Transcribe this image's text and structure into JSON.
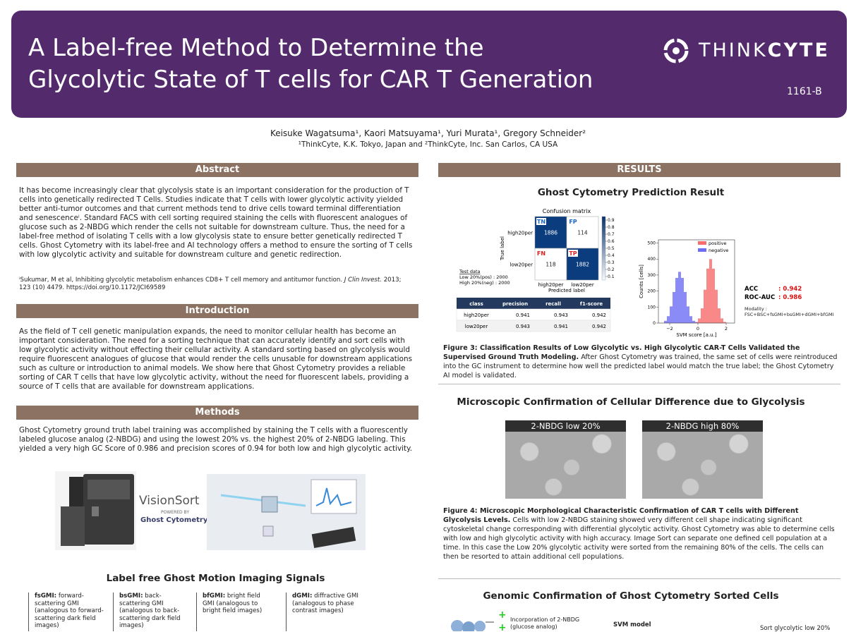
{
  "header": {
    "title_line1": "A Label-free Method to Determine the",
    "title_line2": "Glycolytic State of T cells for CAR T Generation",
    "logo_think": "THINK",
    "logo_cyte": "CYTE",
    "code": "1161-B"
  },
  "authors": {
    "names": "Keisuke Wagatsuma¹, Kaori Matsuyama¹, Yuri Murata¹, Gregory Schneider²",
    "affiliations": "¹ThinkCyte, K.K. Tokyo, Japan and ²ThinkCyte, Inc. San Carlos, CA USA"
  },
  "abstract": {
    "heading": "Abstract",
    "text": "It has become increasingly clear that glycolysis state is an important consideration for the production of T cells into genetically redirected T Cells. Studies indicate that T cells with lower glycolytic activity yielded better anti-tumor outcomes and that current methods tend to drive cells toward terminal differentiation and senescenceⁱ. Standard FACS with cell sorting required staining the cells with fluorescent analogues of glucose such as 2-NBDG which render the cells not suitable for downstream culture. Thus, the need for a label-free method of isolating T cells with a low glycolysis state to ensure better genetically redirected T cells. Ghost Cytometry with its label-free and AI technology offers a method to ensure the sorting of T cells with low glycolytic activity and suitable for downstream culture and genetic redirection.",
    "reference_1": "ⁱSukumar, M et al, Inhibiting glycolytic metabolism enhances CD8+ T cell memory and antitumor function.",
    "reference_journal": "J Clin Invest.",
    "reference_2": "2013; 123 (10) 4479. https://doi.org/10.1172/JCI69589"
  },
  "introduction": {
    "heading": "Introduction",
    "text": "As the field of T cell genetic manipulation expands, the need to monitor cellular health has become an important consideration. The need for a sorting technique that can accurately identify and sort cells with low glycolytic activity without effecting their cellular activity. A standard sorting based on glycolysis would require fluorescent analogues of glucose that would render the cells unusable for downstream applications such as culture or introduction to animal models. We show here that Ghost Cytometry provides a reliable sorting of CAR T cells that have low glycolytic activity, without the need for fluorescent labels, providing a source of T cells that are available for downstream applications."
  },
  "methods": {
    "heading": "Methods",
    "text": "Ghost Cytometry ground truth label training was accomplished by staining the T cells with a fluorescently labeled glucose analog (2-NBDG) and using the lowest 20% vs. the highest 20% of 2-NBDG labeling. This yielded a very high GC Score of 0.986 and precision scores of 0.94 for both low and high glycolytic activity.",
    "brand_name": "VisionSort",
    "brand_powered": "POWERED BY",
    "brand_tech": "Ghost Cytometry"
  },
  "signals": {
    "heading": "Label free Ghost Motion Imaging Signals",
    "panels": [
      {
        "label": "fsGMI:",
        "desc": "forward-scattering GMI (analogous to forward-scattering dark field images)"
      },
      {
        "label": "bsGMI:",
        "desc": "back-scattering GMI (analogous to back-scattering dark field images)"
      },
      {
        "label": "bfGMI:",
        "desc": "bright field GMI (analogous to bright field images)"
      },
      {
        "label": "dGMI:",
        "desc": "diffractive GMI (analogous to phase contrast images)"
      }
    ]
  },
  "results": {
    "heading": "RESULTS",
    "prediction": {
      "title": "Ghost Cytometry Prediction Result",
      "confusion": {
        "title": "Confusion matrix",
        "y_label": "True label",
        "x_label": "Predicted label",
        "classes": [
          "high20per",
          "low20per"
        ],
        "cells": [
          {
            "label": "TN",
            "value": 1886
          },
          {
            "label": "FP",
            "value": 114
          },
          {
            "label": "FN",
            "value": 118
          },
          {
            "label": "TP",
            "value": 1882
          }
        ],
        "colorbar_ticks": [
          0.9,
          0.8,
          0.7,
          0.6,
          0.5,
          0.4,
          0.3,
          0.2,
          0.1
        ],
        "test_data": [
          "Test data",
          "Low 20%(pos)  : 2000",
          "High 20%(neg) : 2000"
        ]
      },
      "table": {
        "header": [
          "class",
          "precision",
          "recall",
          "f1-score"
        ],
        "rows": [
          [
            "high20per",
            0.941,
            0.943,
            0.942
          ],
          [
            "low20per",
            0.943,
            0.941,
            0.942
          ]
        ]
      },
      "histogram": {
        "y_label": "Counts [cells]",
        "x_label": "SVM score [a.u.]",
        "bins": [
          -2.4,
          -2.2,
          -2.0,
          -1.8,
          -1.6,
          -1.4,
          -1.2,
          -1.0,
          -0.8,
          -0.6,
          -0.4,
          -0.2,
          0.0,
          0.2,
          0.4,
          0.6,
          0.8,
          1.0,
          1.2,
          1.4,
          1.6,
          1.8,
          2.0,
          2.2
        ],
        "series": [
          {
            "name": "positive",
            "color": "#f76c6c",
            "values": [
              0,
              0,
              0,
              0,
              0,
              0,
              0,
              0,
              0,
              0,
              1,
              7,
              29,
              92,
              208,
              340,
              400,
              340,
              208,
              92,
              29,
              7,
              1
            ]
          },
          {
            "name": "negative",
            "color": "#6e6ef5",
            "values": [
              14,
              43,
              104,
              194,
              282,
              320,
              282,
              194,
              104,
              43,
              14,
              4,
              1,
              0,
              0,
              0,
              0,
              0,
              0,
              0,
              0,
              0,
              0
            ]
          }
        ],
        "xlim": [
          -2.8,
          2.6
        ],
        "ylim": [
          0,
          520
        ],
        "xticks": [
          {
            "value": -2,
            "label": "−2"
          },
          0,
          2
        ],
        "yticks": [
          0,
          100,
          200,
          300,
          400,
          500
        ]
      },
      "metrics": {
        "acc_label": "ACC",
        "acc_value": ": 0.942",
        "roc_label": "ROC-AUC",
        "roc_value": ": 0.986",
        "modality": "Modality : FSC+BSC+fsGMI+bsGMI+dGMI+bfGMI"
      },
      "caption_bold": "Figure 3: Classification Results of Low Glycolytic vs. High Glycolytic CAR-T Cells Validated the Supervised Ground Truth Modeling.",
      "caption": "After Ghost Cytometry was trained, the same set of cells were reintroduced into the GC instrument to determine how well the predicted label would match the true label; the Ghost Cytometry AI model is validated."
    },
    "microscopy": {
      "title": "Microscopic Confirmation of Cellular Difference due to Glycolysis",
      "images": [
        "2-NBDG low 20%",
        "2-NBDG high 80%"
      ],
      "caption_bold": "Figure 4: Microscopic Morphological Characteristic Confirmation of CAR T cells with Different Glycolysis Levels.",
      "caption": "Cells with low 2-NBDG staining showed very different cell shape indicating significant cytoskeletal change corresponding with differential glycolytic activity.  Ghost Cytometry was able to determine cells with low and high glycolytic activity with high accuracy.  Image Sort can separate one defined cell population at a time. In this case the Low 20% glycolytic activity were sorted from the remaining 80% of the cells. The cells can then be resorted to attain additional cell populations."
    },
    "genomic": {
      "title": "Genomic Confirmation of Ghost Cytometry Sorted Cells",
      "incorporation": "Incorporation of 2-NBDG (glucose analog)",
      "model": "SVM model",
      "sort": "Sort glycolytic low 20%"
    }
  }
}
